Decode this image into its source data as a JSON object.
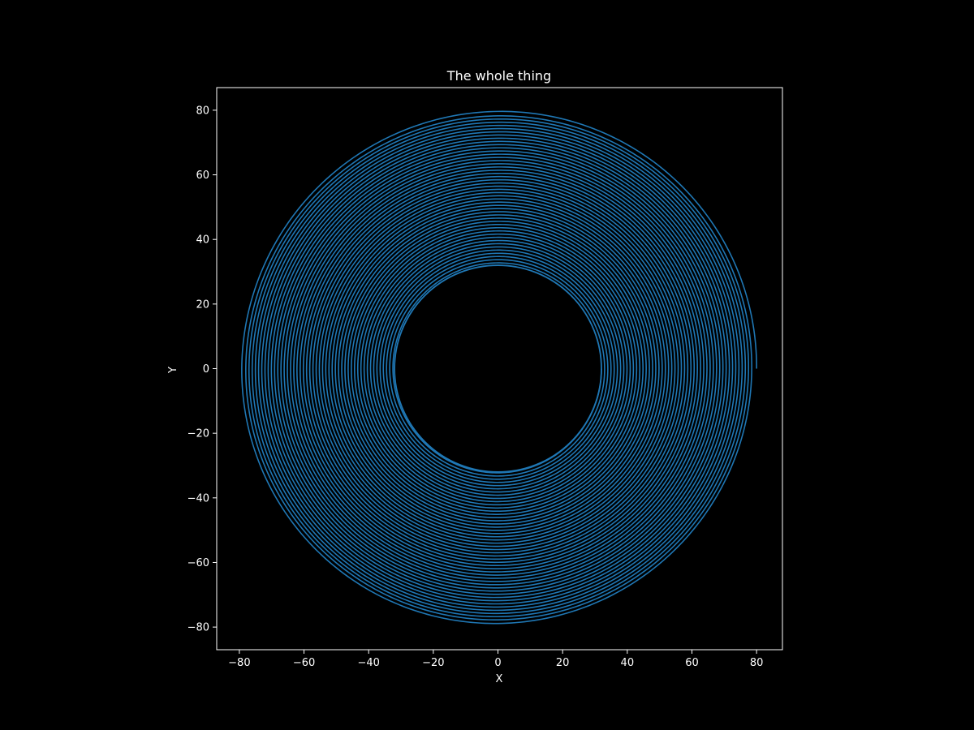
{
  "chart_data": {
    "type": "line",
    "title": "The whole thing",
    "xlabel": "X",
    "ylabel": "Y",
    "xlim": [
      -87,
      88
    ],
    "ylim": [
      -87,
      87
    ],
    "xticks": [
      -80,
      -60,
      -40,
      -20,
      0,
      20,
      40,
      60,
      80
    ],
    "yticks": [
      -80,
      -60,
      -40,
      -20,
      0,
      20,
      40,
      60,
      80
    ],
    "grid": false,
    "aspect": "equal",
    "background_color": "#000000",
    "foreground_color": "#ffffff",
    "series": [
      {
        "shape": "spiral",
        "color": "#1f77b4",
        "start_point": [
          80,
          0
        ],
        "outer_radius": 80,
        "outer_min_radius": 78.5,
        "inner_radius": 32,
        "center": [
          0,
          0
        ]
      }
    ]
  }
}
